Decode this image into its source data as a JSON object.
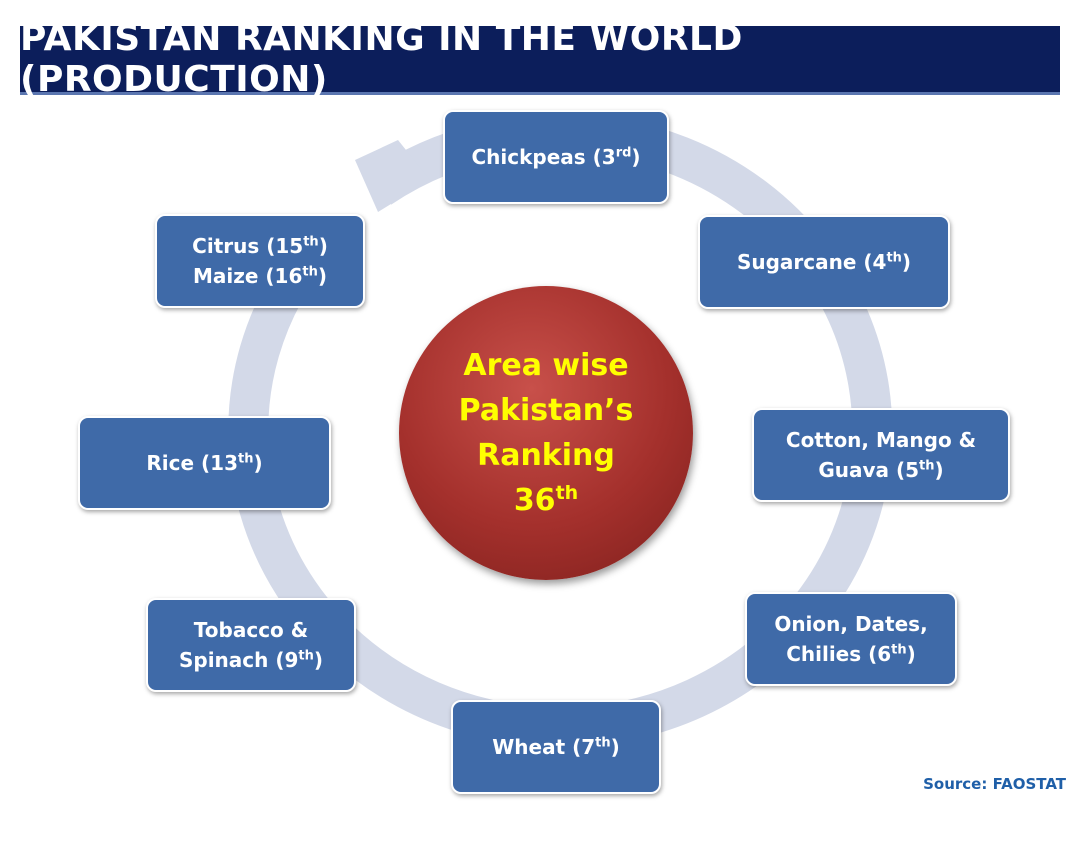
{
  "header": {
    "title": "PAKISTAN RANKING IN THE WORLD (PRODUCTION)"
  },
  "center": {
    "lines": [
      [
        {
          "text": "Area wise"
        }
      ],
      [
        {
          "text": "Pakistan’s"
        }
      ],
      [
        {
          "text": "Ranking"
        }
      ],
      [
        {
          "text": "36"
        },
        {
          "sup": "th"
        }
      ]
    ]
  },
  "nodes": [
    {
      "lines": [
        [
          {
            "text": "Chickpeas (3"
          },
          {
            "sup": "rd"
          },
          {
            "text": ")"
          }
        ]
      ]
    },
    {
      "lines": [
        [
          {
            "text": "Sugarcane (4"
          },
          {
            "sup": "th"
          },
          {
            "text": ")"
          }
        ]
      ]
    },
    {
      "lines": [
        [
          {
            "text": "Cotton, Mango &"
          }
        ],
        [
          {
            "text": "Guava (5"
          },
          {
            "sup": "th"
          },
          {
            "text": ")"
          }
        ]
      ]
    },
    {
      "lines": [
        [
          {
            "text": "Onion, Dates,"
          }
        ],
        [
          {
            "text": "Chilies (6"
          },
          {
            "sup": "th"
          },
          {
            "text": ")"
          }
        ]
      ]
    },
    {
      "lines": [
        [
          {
            "text": "Wheat (7"
          },
          {
            "sup": "th"
          },
          {
            "text": ")"
          }
        ]
      ]
    },
    {
      "lines": [
        [
          {
            "text": "Tobacco &"
          }
        ],
        [
          {
            "text": "Spinach (9"
          },
          {
            "sup": "th"
          },
          {
            "text": ")"
          }
        ]
      ]
    },
    {
      "lines": [
        [
          {
            "text": "Rice (13"
          },
          {
            "sup": "th"
          },
          {
            "text": ")"
          }
        ]
      ]
    },
    {
      "lines": [
        [
          {
            "text": "Citrus (15"
          },
          {
            "sup": "th"
          },
          {
            "text": ")"
          }
        ],
        [
          {
            "text": "Maize (16"
          },
          {
            "sup": "th"
          },
          {
            "text": ")"
          }
        ]
      ]
    }
  ],
  "source": "Source: FAOSTAT"
}
